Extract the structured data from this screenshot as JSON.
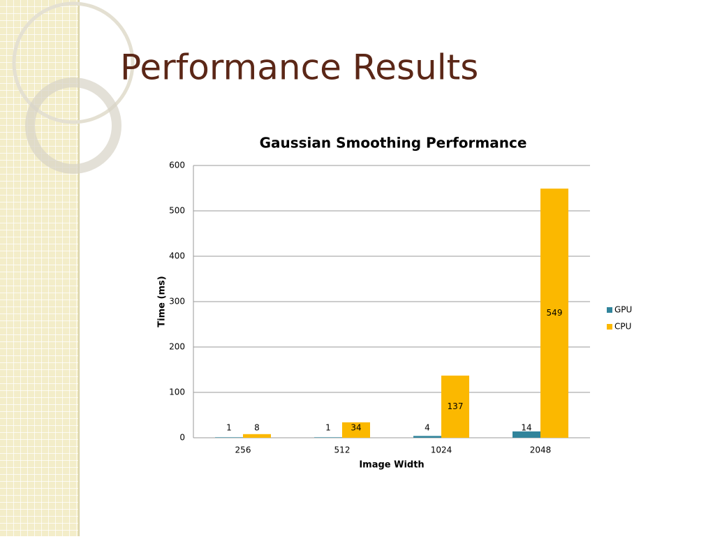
{
  "slide_title": "Performance Results",
  "chart_data": {
    "type": "bar",
    "title": "Gaussian Smoothing Performance",
    "x_label": "Image Width",
    "y_label": "Time (ms)",
    "categories": [
      "256",
      "512",
      "1024",
      "2048"
    ],
    "series": [
      {
        "name": "GPU",
        "color": "#31849b",
        "values": [
          1,
          1,
          4,
          14
        ]
      },
      {
        "name": "CPU",
        "color": "#fbb800",
        "values": [
          8,
          34,
          137,
          549
        ]
      }
    ],
    "ylim": [
      0,
      600
    ],
    "yticks": [
      0,
      100,
      200,
      300,
      400,
      500,
      600
    ],
    "grid": true,
    "legend": "right"
  }
}
